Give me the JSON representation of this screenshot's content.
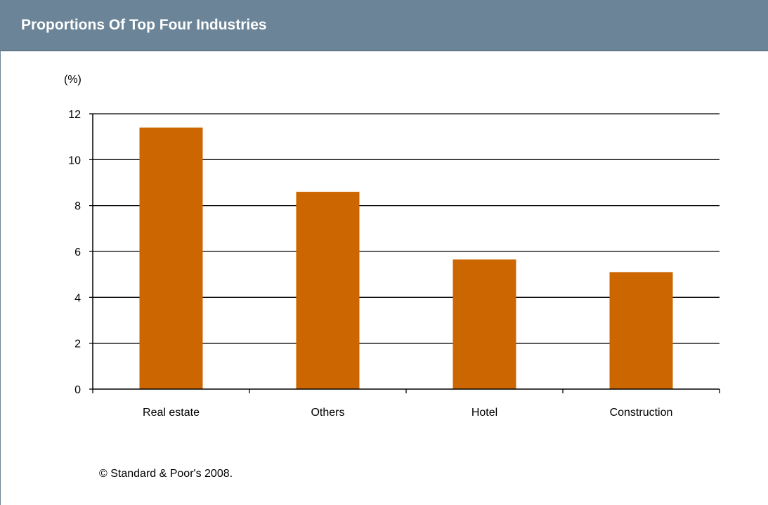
{
  "header": {
    "title": "Proportions Of Top Four Industries"
  },
  "footnote": "© Standard & Poor's 2008.",
  "colors": {
    "bar": "#cc6600",
    "header_bg": "#6b8497",
    "gridline": "#000000"
  },
  "chart_data": {
    "type": "bar",
    "title": "Proportions Of Top Four Industries",
    "ylabel": "(%)",
    "xlabel": "",
    "categories": [
      "Real estate",
      "Others",
      "Hotel",
      "Construction"
    ],
    "values": [
      11.4,
      8.6,
      5.65,
      5.1
    ],
    "ylim": [
      0,
      12
    ],
    "yticks": [
      "0",
      "2",
      "4",
      "6",
      "8",
      "10",
      "12"
    ],
    "grid": true,
    "legend": "none"
  }
}
